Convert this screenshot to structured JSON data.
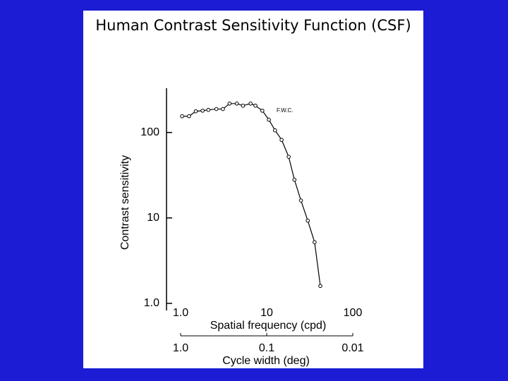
{
  "chart_data": {
    "type": "line",
    "title": "Human Contrast Sensitivity Function (CSF)",
    "xlabel": "Spatial frequency (cpd)",
    "ylabel": "Contrast sensitivity",
    "x2label": "Cycle width (deg)",
    "annotation": "F.W.C.",
    "log_x": true,
    "log_y": true,
    "color": "#000000",
    "x": [
      1.04,
      1.25,
      1.5,
      1.8,
      2.1,
      2.6,
      3.1,
      3.7,
      4.5,
      5.3,
      6.5,
      7.4,
      8.9,
      10.6,
      12.5,
      14.9,
      18,
      21,
      25,
      30,
      36,
      42
    ],
    "values": [
      155,
      155,
      177,
      180,
      184,
      188,
      188,
      218,
      218,
      206,
      218,
      206,
      180,
      141,
      106,
      82,
      52,
      28,
      16,
      9.3,
      5.2,
      1.6
    ],
    "xlim": [
      1,
      100
    ],
    "xticks": [
      {
        "value": 1,
        "label": "1.0"
      },
      10,
      100
    ],
    "x2lim": [
      1,
      0.01
    ],
    "x2ticks": [
      {
        "value": 1,
        "label": "1.0"
      },
      0.1,
      0.01
    ],
    "ylim": [
      1,
      300
    ],
    "yticks": [
      {
        "value": 1,
        "label": "1.0"
      },
      10,
      100
    ]
  }
}
